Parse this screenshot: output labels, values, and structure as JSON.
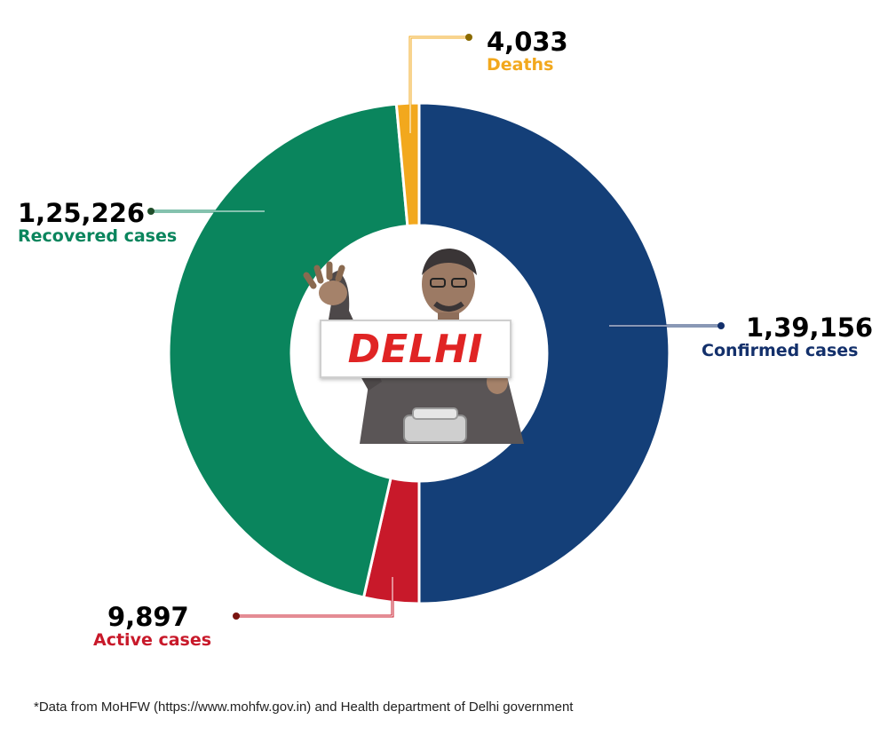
{
  "chart_data": {
    "type": "pie",
    "style": "donut",
    "slices": [
      {
        "key": "confirmed",
        "label": "Confirmed cases",
        "value_label": "1,39,156",
        "value": 139156,
        "color": "#143f78"
      },
      {
        "key": "active",
        "label": "Active cases",
        "value_label": "9,897",
        "value": 9897,
        "color": "#c8192a"
      },
      {
        "key": "recovered",
        "label": "Recovered cases",
        "value_label": "1,25,226",
        "value": 125226,
        "color": "#0a855d"
      },
      {
        "key": "deaths",
        "label": "Deaths",
        "value_label": "4,033",
        "value": 4033,
        "color": "#f2a81d"
      }
    ],
    "legend": "callout labels beside slices",
    "label_colors": {
      "confirmed": "#13306b",
      "active": "#c8192a",
      "recovered": "#0a855d",
      "deaths": "#f2a81d"
    }
  },
  "center": {
    "banner_text": "DELHI"
  },
  "footnote": "*Data from MoHFW (https://www.mohfw.gov.in) and Health department of Delhi government"
}
